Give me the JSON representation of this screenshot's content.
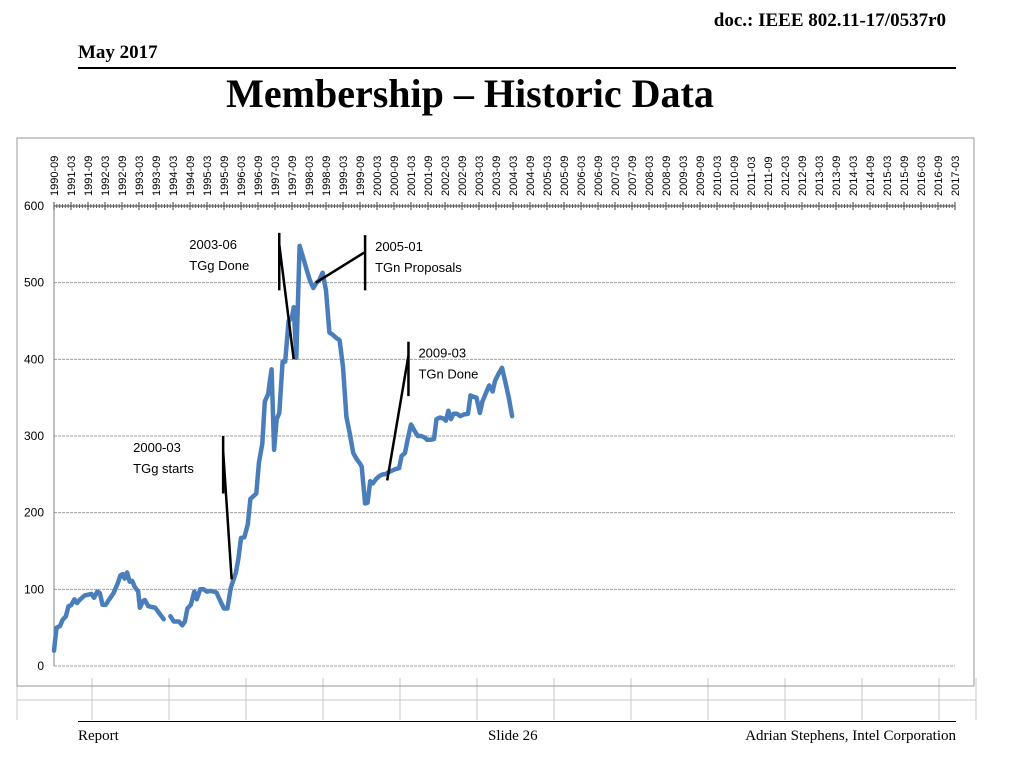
{
  "header": {
    "doc_id": "doc.: IEEE 802.11-17/0537r0",
    "date": "May 2017",
    "title": "Membership – Historic Data"
  },
  "footer": {
    "left": "Report",
    "center": "Slide 26",
    "right": "Adrian Stephens, Intel Corporation"
  },
  "colors": {
    "series": "#4a7ebb",
    "annotation": "#000000",
    "grid": "#a0a0a0"
  },
  "chart_data": {
    "type": "line",
    "title": "",
    "xlabel": "",
    "ylabel": "",
    "ylim": [
      0,
      600
    ],
    "yticks": [
      0,
      100,
      200,
      300,
      400,
      500,
      600
    ],
    "grid": true,
    "categories": [
      "1990-09",
      "1991-03",
      "1991-09",
      "1992-03",
      "1992-09",
      "1993-03",
      "1993-09",
      "1994-03",
      "1994-09",
      "1995-03",
      "1995-09",
      "1996-03",
      "1996-09",
      "1997-03",
      "1997-09",
      "1998-03",
      "1998-09",
      "1999-03",
      "1999-09",
      "2000-03",
      "2000-09",
      "2001-03",
      "2001-09",
      "2002-03",
      "2002-09",
      "2003-03",
      "2003-09",
      "2004-03",
      "2004-09",
      "2005-03",
      "2005-09",
      "2006-03",
      "2006-09",
      "2007-03",
      "2007-09",
      "2008-03",
      "2008-09",
      "2009-03",
      "2009-09",
      "2010-03",
      "2010-09",
      "2011-03",
      "2011-09",
      "2012-03",
      "2012-09",
      "2013-03",
      "2013-09",
      "2014-03",
      "2014-09",
      "2015-03",
      "2015-09",
      "2016-03",
      "2016-09",
      "2017-03"
    ],
    "series": [
      {
        "name": "Membership",
        "segments": [
          [
            [
              0,
              20
            ],
            [
              0.15,
              50
            ],
            [
              0.35,
              52
            ],
            [
              0.5,
              60
            ],
            [
              0.7,
              65
            ],
            [
              0.85,
              78
            ],
            [
              1,
              79
            ],
            [
              1.2,
              87
            ],
            [
              1.35,
              82
            ],
            [
              1.5,
              86
            ],
            [
              1.8,
              92
            ],
            [
              2,
              93
            ],
            [
              2.2,
              94
            ],
            [
              2.35,
              89
            ],
            [
              2.55,
              97
            ],
            [
              2.7,
              95
            ],
            [
              2.85,
              80
            ],
            [
              3.05,
              80
            ],
            [
              3.25,
              87
            ],
            [
              3.5,
              95
            ],
            [
              3.75,
              108
            ],
            [
              3.9,
              118
            ],
            [
              4.05,
              120
            ],
            [
              4.15,
              114
            ],
            [
              4.3,
              122
            ],
            [
              4.45,
              110
            ],
            [
              4.6,
              111
            ],
            [
              4.75,
              103
            ],
            [
              4.95,
              97
            ],
            [
              5.05,
              76
            ],
            [
              5.25,
              85
            ],
            [
              5.35,
              86
            ],
            [
              5.55,
              78
            ],
            [
              5.75,
              77
            ],
            [
              5.95,
              76
            ],
            [
              6.15,
              70
            ],
            [
              6.45,
              61
            ]
          ],
          [
            [
              6.85,
              65
            ],
            [
              7.05,
              58
            ],
            [
              7.35,
              58
            ],
            [
              7.55,
              53
            ],
            [
              7.7,
              58
            ],
            [
              7.85,
              75
            ],
            [
              8.05,
              80
            ],
            [
              8.25,
              97
            ],
            [
              8.4,
              87
            ],
            [
              8.6,
              100
            ],
            [
              8.8,
              100
            ],
            [
              9,
              97
            ],
            [
              9.2,
              98
            ],
            [
              9.4,
              97
            ],
            [
              9.55,
              96
            ],
            [
              9.8,
              84
            ],
            [
              10,
              75
            ],
            [
              10.2,
              75
            ],
            [
              10.4,
              102
            ],
            [
              10.7,
              122
            ],
            [
              10.85,
              140
            ],
            [
              11,
              167
            ],
            [
              11.2,
              168
            ],
            [
              11.4,
              185
            ],
            [
              11.55,
              218
            ],
            [
              11.75,
              222
            ],
            [
              11.9,
              225
            ],
            [
              12.05,
              265
            ],
            [
              12.25,
              290
            ],
            [
              12.4,
              345
            ],
            [
              12.6,
              355
            ],
            [
              12.7,
              372
            ],
            [
              12.8,
              387
            ],
            [
              12.95,
              282
            ],
            [
              13.1,
              322
            ],
            [
              13.25,
              330
            ],
            [
              13.45,
              397
            ],
            [
              13.6,
              397
            ],
            [
              13.8,
              450
            ],
            [
              14,
              455
            ],
            [
              14.1,
              468
            ],
            [
              14.25,
              402
            ],
            [
              14.45,
              548
            ],
            [
              14.65,
              533
            ],
            [
              14.85,
              518
            ],
            [
              15.05,
              503
            ],
            [
              15.25,
              493
            ],
            [
              15.45,
              500
            ],
            [
              15.6,
              503
            ],
            [
              15.8,
              513
            ],
            [
              16,
              490
            ],
            [
              16.2,
              435
            ],
            [
              16.4,
              432
            ],
            [
              16.6,
              428
            ],
            [
              16.8,
              425
            ],
            [
              17,
              390
            ],
            [
              17.2,
              325
            ],
            [
              17.4,
              303
            ],
            [
              17.6,
              278
            ],
            [
              17.8,
              270
            ],
            [
              18,
              264
            ],
            [
              18.1,
              260
            ],
            [
              18.3,
              212
            ],
            [
              18.45,
              213
            ],
            [
              18.6,
              241
            ],
            [
              18.75,
              238
            ],
            [
              18.95,
              244
            ],
            [
              19.15,
              248
            ],
            [
              19.35,
              250
            ],
            [
              19.5,
              250
            ],
            [
              19.7,
              253
            ],
            [
              19.9,
              255
            ],
            [
              20.1,
              257
            ],
            [
              20.3,
              258
            ],
            [
              20.45,
              274
            ],
            [
              20.65,
              278
            ],
            [
              20.8,
              295
            ],
            [
              21,
              315
            ],
            [
              21.2,
              307
            ],
            [
              21.4,
              300
            ],
            [
              21.6,
              300
            ],
            [
              21.8,
              298
            ],
            [
              21.95,
              295
            ],
            [
              22.15,
              295
            ],
            [
              22.35,
              296
            ],
            [
              22.5,
              322
            ],
            [
              22.7,
              324
            ],
            [
              22.9,
              323
            ],
            [
              23.05,
              320
            ],
            [
              23.2,
              333
            ],
            [
              23.35,
              322
            ],
            [
              23.5,
              329
            ],
            [
              23.7,
              329
            ],
            [
              23.9,
              326
            ],
            [
              24.1,
              328
            ],
            [
              24.35,
              329
            ],
            [
              24.5,
              353
            ],
            [
              24.7,
              351
            ],
            [
              24.85,
              350
            ],
            [
              25.05,
              330
            ],
            [
              25.2,
              345
            ],
            [
              25.45,
              358
            ],
            [
              25.6,
              366
            ],
            [
              25.8,
              358
            ],
            [
              25.95,
              372
            ],
            [
              26.15,
              381
            ],
            [
              26.35,
              389
            ],
            [
              26.55,
              370
            ],
            [
              26.75,
              350
            ],
            [
              26.95,
              326
            ]
          ]
        ]
      }
    ],
    "annotations": [
      {
        "date": "2000-03",
        "label": "TGg starts",
        "line": [
          [
            9.95,
            300
          ],
          [
            9.95,
            225
          ],
          [
            9.95,
            280
          ],
          [
            10.45,
            113
          ]
        ]
      },
      {
        "date": "2003-06",
        "label": "TGg Done",
        "line": [
          [
            13.25,
            565
          ],
          [
            13.25,
            490
          ],
          [
            13.25,
            550
          ],
          [
            14.1,
            400
          ]
        ]
      },
      {
        "date": "2005-01",
        "label": "TGn Proposals",
        "line": [
          [
            18.3,
            562
          ],
          [
            18.3,
            490
          ],
          [
            18.3,
            540
          ],
          [
            15.4,
            500
          ]
        ]
      },
      {
        "date": "2009-03",
        "label": "TGn Done",
        "line": [
          [
            20.85,
            423
          ],
          [
            20.85,
            352
          ],
          [
            20.85,
            405
          ],
          [
            19.6,
            242
          ]
        ]
      }
    ]
  }
}
